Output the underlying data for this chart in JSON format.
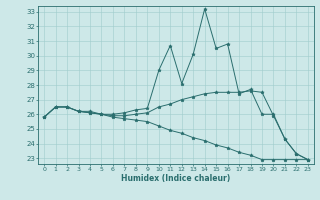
{
  "xlabel": "Humidex (Indice chaleur)",
  "background_color": "#cde8e8",
  "line_color": "#2a6e6e",
  "grid_color": "#a0cccc",
  "xlim": [
    -0.5,
    23.5
  ],
  "ylim": [
    22.6,
    33.4
  ],
  "xticks": [
    0,
    1,
    2,
    3,
    4,
    5,
    6,
    7,
    8,
    9,
    10,
    11,
    12,
    13,
    14,
    15,
    16,
    17,
    18,
    19,
    20,
    21,
    22,
    23
  ],
  "yticks": [
    23,
    24,
    25,
    26,
    27,
    28,
    29,
    30,
    31,
    32,
    33
  ],
  "series": [
    {
      "x": [
        0,
        1,
        2,
        3,
        4,
        5,
        6,
        7,
        8,
        9,
        10,
        11,
        12,
        13,
        14,
        15,
        16,
        17,
        18,
        19,
        20,
        21,
        22,
        23
      ],
      "y": [
        25.8,
        26.5,
        26.5,
        26.2,
        26.2,
        26.0,
        26.0,
        26.1,
        26.3,
        26.4,
        29.0,
        30.7,
        28.1,
        30.1,
        33.2,
        30.5,
        30.8,
        27.4,
        27.7,
        26.0,
        26.0,
        24.3,
        23.3,
        22.9
      ]
    },
    {
      "x": [
        0,
        1,
        2,
        3,
        4,
        5,
        6,
        7,
        8,
        9,
        10,
        11,
        12,
        13,
        14,
        15,
        16,
        17,
        18,
        19,
        20,
        21,
        22,
        23
      ],
      "y": [
        25.8,
        26.5,
        26.5,
        26.2,
        26.1,
        26.0,
        25.9,
        25.9,
        26.0,
        26.1,
        26.5,
        26.7,
        27.0,
        27.2,
        27.4,
        27.5,
        27.5,
        27.5,
        27.6,
        27.5,
        25.9,
        24.3,
        23.3,
        22.9
      ]
    },
    {
      "x": [
        0,
        1,
        2,
        3,
        4,
        5,
        6,
        7,
        8,
        9,
        10,
        11,
        12,
        13,
        14,
        15,
        16,
        17,
        18,
        19,
        20,
        21,
        22,
        23
      ],
      "y": [
        25.8,
        26.5,
        26.5,
        26.2,
        26.1,
        26.0,
        25.8,
        25.7,
        25.6,
        25.5,
        25.2,
        24.9,
        24.7,
        24.4,
        24.2,
        23.9,
        23.7,
        23.4,
        23.2,
        22.9,
        22.9,
        22.9,
        22.9,
        22.9
      ]
    }
  ]
}
